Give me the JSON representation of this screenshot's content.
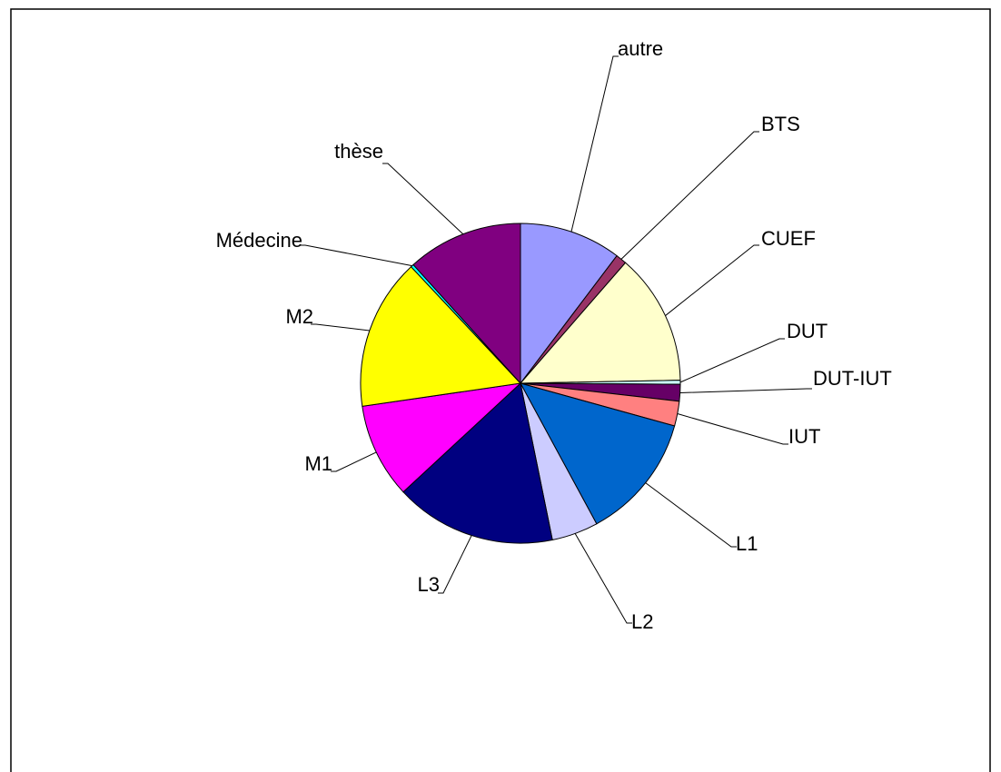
{
  "chart_data": {
    "type": "pie",
    "categories": [
      "autre",
      "BTS",
      "CUEF",
      "DUT",
      "DUT-IUT",
      "IUT",
      "L1",
      "L2",
      "L3",
      "M1",
      "M2",
      "Médecine",
      "thèse"
    ],
    "values": [
      10.3,
      1.1,
      13.3,
      0.4,
      1.7,
      2.5,
      12.8,
      4.7,
      16.3,
      9.6,
      15.3,
      0.3,
      11.7
    ],
    "colors": [
      "#9999ff",
      "#993366",
      "#ffffcc",
      "#ccffff",
      "#660066",
      "#ff8080",
      "#0066cc",
      "#ccccff",
      "#000080",
      "#ff00ff",
      "#ffff00",
      "#00ffff",
      "#800080"
    ],
    "clockwise": true
  }
}
